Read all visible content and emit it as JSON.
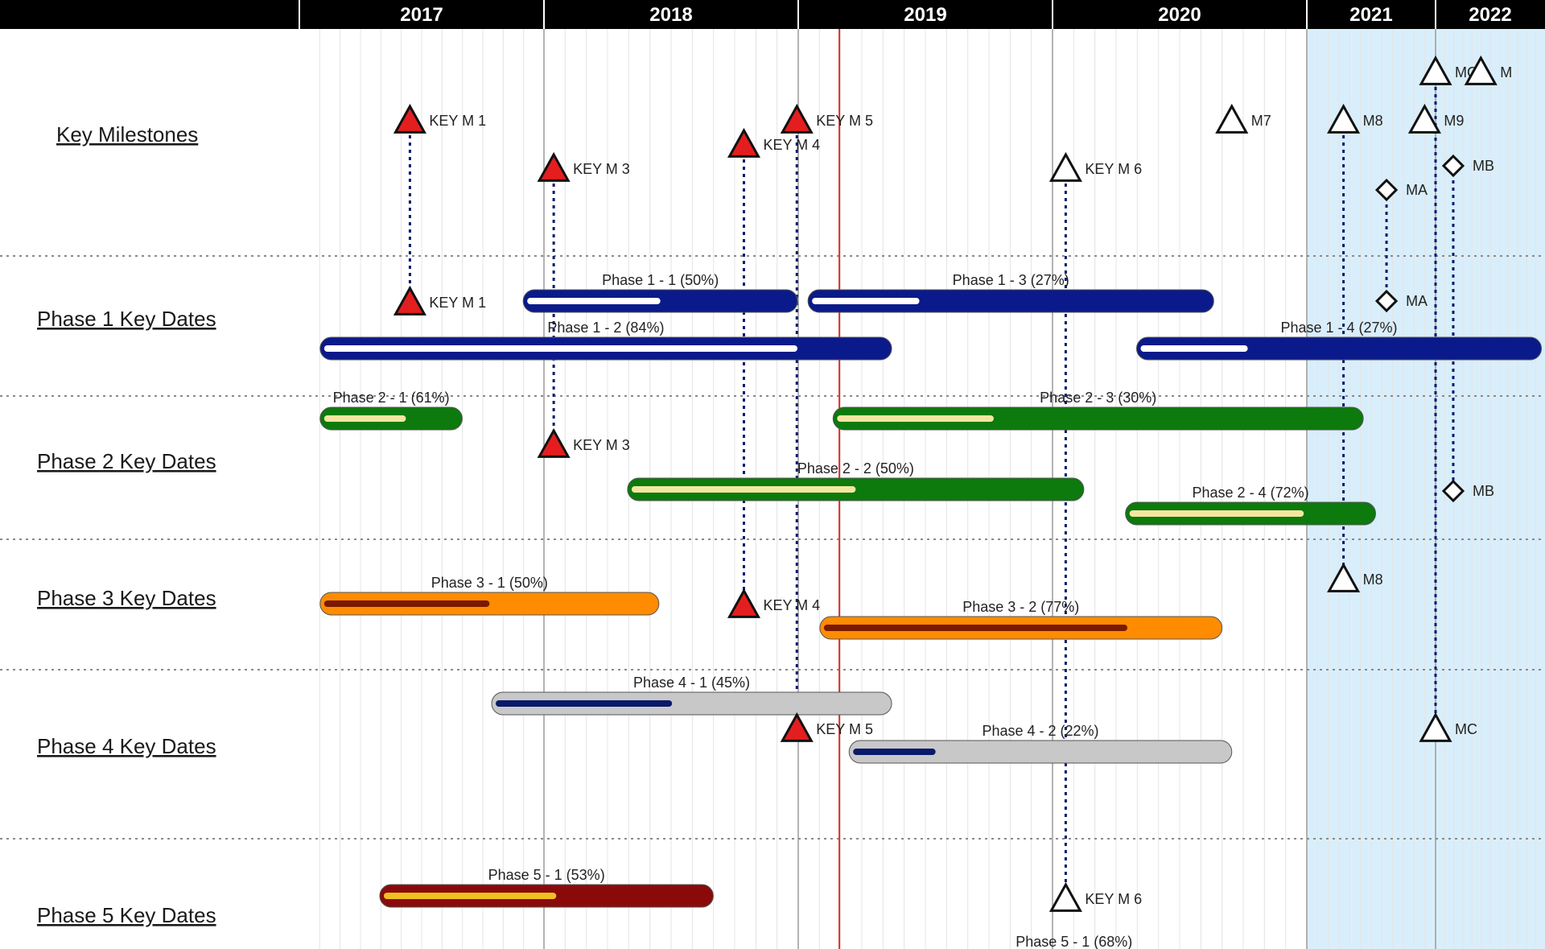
{
  "colors": {
    "header_bg": "#000000",
    "header_text": "#ffffff",
    "forecast_shade": "#d9eefb",
    "today_line": "#e4312a",
    "phase1": "#0a1a8a",
    "phase2": "#0c7a0c",
    "phase3": "#ff8c00",
    "phase4": "#c8c8c8",
    "phase5": "#8a0a0a",
    "milestone_key": "#e41e1e",
    "connector": "#0a1a6a"
  },
  "chart_data": {
    "type": "gantt",
    "x_axis": {
      "years": [
        "2017",
        "2018",
        "2019",
        "2020",
        "2021",
        "2022"
      ],
      "range": [
        "2017-01-01",
        "2022-12-31"
      ]
    },
    "shaded_period_start": "2021-01-01",
    "today_date": "2019-03-01",
    "grid": "monthly vertical lines, dotted row separators",
    "rows": [
      {
        "id": "milestones",
        "label": "Key Milestones"
      },
      {
        "id": "phase1",
        "label": "Phase 1 Key Dates"
      },
      {
        "id": "phase2",
        "label": "Phase 2 Key Dates"
      },
      {
        "id": "phase3",
        "label": "Phase 3 Key Dates"
      },
      {
        "id": "phase4",
        "label": "Phase 4 Key Dates"
      },
      {
        "id": "phase5",
        "label": "Phase 5 Key Dates"
      }
    ],
    "tasks": [
      {
        "row": "phase1",
        "label": "Phase 1 - 1 (50%)",
        "start": "2017-12-01",
        "end": "2018-12-31",
        "progress": 0.5,
        "color": "#0a1a8a",
        "fill": "#ffffff"
      },
      {
        "row": "phase1",
        "label": "Phase 1 - 2 (84%)",
        "start": "2017-02-01",
        "end": "2019-05-15",
        "progress": 0.84,
        "color": "#0a1a8a",
        "fill": "#ffffff"
      },
      {
        "row": "phase1",
        "label": "Phase 1 - 3 (27%)",
        "start": "2019-01-15",
        "end": "2020-08-20",
        "progress": 0.27,
        "color": "#0a1a8a",
        "fill": "#ffffff"
      },
      {
        "row": "phase1",
        "label": "Phase 1 - 4 (27%)",
        "start": "2020-05-01",
        "end": "2022-12-20",
        "progress": 0.27,
        "color": "#0a1a8a",
        "fill": "#ffffff"
      },
      {
        "row": "phase2",
        "label": "Phase 2 - 1 (61%)",
        "start": "2017-02-01",
        "end": "2017-09-01",
        "progress": 0.61,
        "color": "#0c7a0c",
        "fill": "#f3e6a0"
      },
      {
        "row": "phase2",
        "label": "Phase 2 - 2 (50%)",
        "start": "2018-05-01",
        "end": "2020-02-15",
        "progress": 0.5,
        "color": "#0c7a0c",
        "fill": "#f3e6a0"
      },
      {
        "row": "phase2",
        "label": "Phase 2 - 3 (30%)",
        "start": "2019-02-20",
        "end": "2021-06-10",
        "progress": 0.3,
        "color": "#0c7a0c",
        "fill": "#f3e6a0"
      },
      {
        "row": "phase2",
        "label": "Phase 2 - 4 (72%)",
        "start": "2020-04-15",
        "end": "2021-07-15",
        "progress": 0.72,
        "color": "#0c7a0c",
        "fill": "#f3e6a0"
      },
      {
        "row": "phase3",
        "label": "Phase 3 - 1 (50%)",
        "start": "2017-02-01",
        "end": "2018-06-15",
        "progress": 0.5,
        "color": "#ff8c00",
        "fill": "#7a1a00"
      },
      {
        "row": "phase3",
        "label": "Phase 3 - 2 (77%)",
        "start": "2019-02-01",
        "end": "2020-09-01",
        "progress": 0.77,
        "color": "#ff8c00",
        "fill": "#7a1a00"
      },
      {
        "row": "phase4",
        "label": "Phase 4 - 1 (45%)",
        "start": "2017-10-15",
        "end": "2019-05-15",
        "progress": 0.45,
        "color": "#c8c8c8",
        "fill": "#0a1a6a"
      },
      {
        "row": "phase4",
        "label": "Phase 4 - 2 (22%)",
        "start": "2019-03-15",
        "end": "2020-09-15",
        "progress": 0.22,
        "color": "#c8c8c8",
        "fill": "#0a1a6a"
      },
      {
        "row": "phase5",
        "label": "Phase 5 - 1 (53%)",
        "start": "2017-05-01",
        "end": "2018-09-01",
        "progress": 0.53,
        "color": "#8a0a0a",
        "fill": "#f0c020"
      }
    ],
    "task_extra_labels": [
      {
        "row": "phase5",
        "label": "Phase 5 - 1 (68%)",
        "date": "2020-02-01"
      }
    ],
    "milestones": [
      {
        "row": "milestones",
        "label": "KEY M 1",
        "date": "2017-06-15",
        "shape": "triangle",
        "filled": true
      },
      {
        "row": "milestones",
        "label": "KEY M 3",
        "date": "2018-01-15",
        "shape": "triangle",
        "filled": true
      },
      {
        "row": "milestones",
        "label": "KEY M 4",
        "date": "2018-10-15",
        "shape": "triangle",
        "filled": true
      },
      {
        "row": "milestones",
        "label": "KEY M 5",
        "date": "2018-12-30",
        "shape": "triangle",
        "filled": true
      },
      {
        "row": "milestones",
        "label": "KEY M 6",
        "date": "2020-01-20",
        "shape": "triangle",
        "filled": false
      },
      {
        "row": "milestones",
        "label": "M7",
        "date": "2020-09-15",
        "shape": "triangle",
        "filled": false
      },
      {
        "row": "milestones",
        "label": "M8",
        "date": "2021-04-15",
        "shape": "triangle",
        "filled": false
      },
      {
        "row": "milestones",
        "label": "M9",
        "date": "2021-12-01",
        "shape": "triangle",
        "filled": false
      },
      {
        "row": "milestones",
        "label": "MC",
        "date": "2022-01-01",
        "shape": "triangle",
        "filled": false
      },
      {
        "row": "milestones",
        "label": "M",
        "date": "2022-06-01",
        "shape": "triangle",
        "filled": false
      },
      {
        "row": "milestones",
        "label": "MA",
        "date": "2021-08-15",
        "shape": "diamond",
        "filled": false
      },
      {
        "row": "milestones",
        "label": "MB",
        "date": "2022-03-01",
        "shape": "diamond",
        "filled": false
      },
      {
        "row": "phase1",
        "label": "KEY M 1",
        "date": "2017-06-15",
        "shape": "triangle",
        "filled": true
      },
      {
        "row": "phase1",
        "label": "MA",
        "date": "2021-08-15",
        "shape": "diamond",
        "filled": false
      },
      {
        "row": "phase2",
        "label": "KEY M 3",
        "date": "2018-01-15",
        "shape": "triangle",
        "filled": true
      },
      {
        "row": "phase2",
        "label": "MB",
        "date": "2022-03-01",
        "shape": "diamond",
        "filled": false
      },
      {
        "row": "phase3",
        "label": "KEY M 4",
        "date": "2018-10-15",
        "shape": "triangle",
        "filled": true
      },
      {
        "row": "phase3",
        "label": "M8",
        "date": "2021-04-15",
        "shape": "triangle",
        "filled": false
      },
      {
        "row": "phase4",
        "label": "KEY M 5",
        "date": "2018-12-30",
        "shape": "triangle",
        "filled": true
      },
      {
        "row": "phase4",
        "label": "MC",
        "date": "2022-01-01",
        "shape": "triangle",
        "filled": false
      },
      {
        "row": "phase5",
        "label": "KEY M 6",
        "date": "2020-01-20",
        "shape": "triangle",
        "filled": false
      }
    ]
  }
}
